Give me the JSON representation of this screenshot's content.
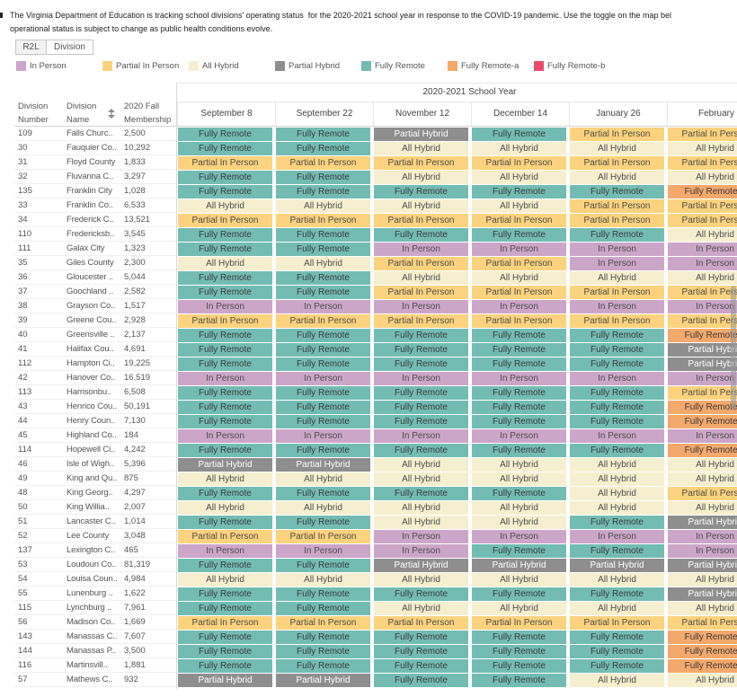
{
  "intro": {
    "line1": "The Virginia Department of Education is tracking school divisions' operating status  for the 2020-2021 school year in response to the COVID-19 pandemic. Use the toggle on the map bel",
    "line2": "operational status is subject to change as public health conditions evolve."
  },
  "toggle": {
    "options": [
      "R2L",
      "Division"
    ]
  },
  "legend": [
    {
      "label": "In Person",
      "color": "#cca6c9",
      "text_color": "#4d4d4d"
    },
    {
      "label": "Partial In Person",
      "color": "#fbd27d",
      "text_color": "#4d4d4d"
    },
    {
      "label": "All Hybrid",
      "color": "#f6efcf",
      "text_color": "#4d4d4d"
    },
    {
      "label": "Partial Hybrid",
      "color": "#8e8e8e",
      "text_color": "#ffffff"
    },
    {
      "label": "Fully Remote",
      "color": "#73bcb4",
      "text_color": "#3a3a3a"
    },
    {
      "label": "Fully Remote-a",
      "color": "#f4a96c",
      "text_color": "#3a3a3a"
    },
    {
      "label": "Fully Remote-b",
      "color": "#e94b6d",
      "text_color": "#ffffff"
    }
  ],
  "chart_data": {
    "type": "table",
    "column_group_label": "2020-2021 School Year",
    "row_header_labels": {
      "number": [
        "Division",
        "Number"
      ],
      "name": [
        "Division",
        "Name"
      ],
      "membership": [
        "2020 Fall",
        "Membership"
      ]
    },
    "columns": [
      "September 8",
      "September 22",
      "November 12",
      "December 14",
      "January 26",
      "February"
    ],
    "rows": [
      {
        "number": "109",
        "name": "Falls Churc..",
        "membership": "2,500",
        "status": [
          "Fully Remote",
          "Fully Remote",
          "Partial Hybrid",
          "Fully Remote",
          "Partial In Person",
          "Partial In Person"
        ]
      },
      {
        "number": "30",
        "name": "Fauquier Co..",
        "membership": "10,292",
        "status": [
          "Fully Remote",
          "Fully Remote",
          "All Hybrid",
          "All Hybrid",
          "All Hybrid",
          "All Hybrid"
        ]
      },
      {
        "number": "31",
        "name": "Floyd County",
        "membership": "1,833",
        "status": [
          "Partial In Person",
          "Partial In Person",
          "Partial In Person",
          "Partial In Person",
          "Partial In Person",
          "Partial In Person"
        ]
      },
      {
        "number": "32",
        "name": "Fluvanna C..",
        "membership": "3,297",
        "status": [
          "Fully Remote",
          "Fully Remote",
          "All Hybrid",
          "All Hybrid",
          "All Hybrid",
          "All Hybrid"
        ]
      },
      {
        "number": "135",
        "name": "Franklin City",
        "membership": "1,028",
        "status": [
          "Fully Remote",
          "Fully Remote",
          "Fully Remote",
          "Fully Remote",
          "Fully Remote",
          "Fully Remote-a"
        ]
      },
      {
        "number": "33",
        "name": "Franklin Co..",
        "membership": "6,533",
        "status": [
          "All Hybrid",
          "All Hybrid",
          "All Hybrid",
          "All Hybrid",
          "Partial In Person",
          "Partial In Person"
        ]
      },
      {
        "number": "34",
        "name": "Frederick C..",
        "membership": "13,521",
        "status": [
          "Partial In Person",
          "Partial In Person",
          "Partial In Person",
          "Partial In Person",
          "Partial In Person",
          "Partial In Person"
        ]
      },
      {
        "number": "110",
        "name": "Fredericksb..",
        "membership": "3,545",
        "status": [
          "Fully Remote",
          "Fully Remote",
          "Fully Remote",
          "Fully Remote",
          "Fully Remote",
          "All Hybrid"
        ]
      },
      {
        "number": "111",
        "name": "Galax City",
        "membership": "1,323",
        "status": [
          "Fully Remote",
          "Fully Remote",
          "In Person",
          "In Person",
          "In Person",
          "In Person"
        ]
      },
      {
        "number": "35",
        "name": "Giles County",
        "membership": "2,300",
        "status": [
          "All Hybrid",
          "All Hybrid",
          "Partial In Person",
          "Partial In Person",
          "In Person",
          "In Person"
        ]
      },
      {
        "number": "36",
        "name": "Gloucester ..",
        "membership": "5,044",
        "status": [
          "Fully Remote",
          "Fully Remote",
          "All Hybrid",
          "All Hybrid",
          "All Hybrid",
          "All Hybrid"
        ]
      },
      {
        "number": "37",
        "name": "Goochland ..",
        "membership": "2,582",
        "status": [
          "Fully Remote",
          "Fully Remote",
          "Partial In Person",
          "Partial In Person",
          "Partial In Person",
          "Partial In Person"
        ]
      },
      {
        "number": "38",
        "name": "Grayson Co..",
        "membership": "1,517",
        "status": [
          "In Person",
          "In Person",
          "In Person",
          "In Person",
          "In Person",
          "In Person"
        ]
      },
      {
        "number": "39",
        "name": "Greene Cou..",
        "membership": "2,928",
        "status": [
          "Partial In Person",
          "Partial In Person",
          "Partial In Person",
          "Partial In Person",
          "Partial In Person",
          "Partial In Person"
        ]
      },
      {
        "number": "40",
        "name": "Greensville ..",
        "membership": "2,137",
        "status": [
          "Fully Remote",
          "Fully Remote",
          "Fully Remote",
          "Fully Remote",
          "Fully Remote",
          "Fully Remote-a"
        ]
      },
      {
        "number": "41",
        "name": "Halifax Cou..",
        "membership": "4,691",
        "status": [
          "Fully Remote",
          "Fully Remote",
          "Fully Remote",
          "Fully Remote",
          "Fully Remote",
          "Partial Hybrid"
        ]
      },
      {
        "number": "112",
        "name": "Hampton Ci..",
        "membership": "19,225",
        "status": [
          "Fully Remote",
          "Fully Remote",
          "Fully Remote",
          "Fully Remote",
          "Fully Remote",
          "Partial Hybrid"
        ]
      },
      {
        "number": "42",
        "name": "Hanover Co..",
        "membership": "16,519",
        "status": [
          "In Person",
          "In Person",
          "In Person",
          "In Person",
          "In Person",
          "In Person"
        ]
      },
      {
        "number": "113",
        "name": "Harrisonbu..",
        "membership": "6,508",
        "status": [
          "Fully Remote",
          "Fully Remote",
          "Fully Remote",
          "Fully Remote",
          "Fully Remote",
          "Partial In Person"
        ]
      },
      {
        "number": "43",
        "name": "Henrico Cou..",
        "membership": "50,191",
        "status": [
          "Fully Remote",
          "Fully Remote",
          "Fully Remote",
          "Fully Remote",
          "Fully Remote",
          "Fully Remote-a"
        ]
      },
      {
        "number": "44",
        "name": "Henry Coun..",
        "membership": "7,130",
        "status": [
          "Fully Remote",
          "Fully Remote",
          "Fully Remote",
          "Fully Remote",
          "Fully Remote",
          "Fully Remote-a"
        ]
      },
      {
        "number": "45",
        "name": "Highland Co..",
        "membership": "184",
        "status": [
          "In Person",
          "In Person",
          "In Person",
          "In Person",
          "In Person",
          "In Person"
        ]
      },
      {
        "number": "114",
        "name": "Hopewell Ci..",
        "membership": "4,242",
        "status": [
          "Fully Remote",
          "Fully Remote",
          "Fully Remote",
          "Fully Remote",
          "Fully Remote",
          "Fully Remote-a"
        ]
      },
      {
        "number": "46",
        "name": "Isle of Wigh..",
        "membership": "5,396",
        "status": [
          "Partial Hybrid",
          "Partial Hybrid",
          "All Hybrid",
          "All Hybrid",
          "All Hybrid",
          "All Hybrid"
        ]
      },
      {
        "number": "49",
        "name": "King and Qu..",
        "membership": "875",
        "status": [
          "All Hybrid",
          "All Hybrid",
          "All Hybrid",
          "All Hybrid",
          "All Hybrid",
          "All Hybrid"
        ]
      },
      {
        "number": "48",
        "name": "King Georg..",
        "membership": "4,297",
        "status": [
          "Fully Remote",
          "Fully Remote",
          "Fully Remote",
          "Fully Remote",
          "All Hybrid",
          "Partial In Person"
        ]
      },
      {
        "number": "50",
        "name": "King Willia..",
        "membership": "2,007",
        "status": [
          "All Hybrid",
          "All Hybrid",
          "All Hybrid",
          "All Hybrid",
          "All Hybrid",
          "All Hybrid"
        ]
      },
      {
        "number": "51",
        "name": "Lancaster C..",
        "membership": "1,014",
        "status": [
          "Fully Remote",
          "Fully Remote",
          "All Hybrid",
          "All Hybrid",
          "Fully Remote",
          "Partial Hybrid"
        ]
      },
      {
        "number": "52",
        "name": "Lee County",
        "membership": "3,048",
        "status": [
          "Partial In Person",
          "Partial In Person",
          "In Person",
          "In Person",
          "In Person",
          "In Person"
        ]
      },
      {
        "number": "137",
        "name": "Lexington C..",
        "membership": "465",
        "status": [
          "In Person",
          "In Person",
          "In Person",
          "Fully Remote",
          "Fully Remote",
          "In Person"
        ]
      },
      {
        "number": "53",
        "name": "Loudoun Co..",
        "membership": "81,319",
        "status": [
          "Fully Remote",
          "Fully Remote",
          "Partial Hybrid",
          "Partial Hybrid",
          "Partial Hybrid",
          "Partial Hybrid"
        ]
      },
      {
        "number": "54",
        "name": "Louisa Coun..",
        "membership": "4,984",
        "status": [
          "All Hybrid",
          "All Hybrid",
          "All Hybrid",
          "All Hybrid",
          "All Hybrid",
          "All Hybrid"
        ]
      },
      {
        "number": "55",
        "name": "Lunenburg ..",
        "membership": "1,622",
        "status": [
          "Fully Remote",
          "Fully Remote",
          "Fully Remote",
          "Fully Remote",
          "Fully Remote",
          "Partial Hybrid"
        ]
      },
      {
        "number": "115",
        "name": "Lynchburg ..",
        "membership": "7,961",
        "status": [
          "Fully Remote",
          "Fully Remote",
          "All Hybrid",
          "All Hybrid",
          "All Hybrid",
          "All Hybrid"
        ]
      },
      {
        "number": "56",
        "name": "Madison Co..",
        "membership": "1,669",
        "status": [
          "Partial In Person",
          "Partial In Person",
          "Partial In Person",
          "Partial In Person",
          "Partial In Person",
          "Partial In Person"
        ]
      },
      {
        "number": "143",
        "name": "Manassas C..",
        "membership": "7,607",
        "status": [
          "Fully Remote",
          "Fully Remote",
          "Fully Remote",
          "Fully Remote",
          "Fully Remote",
          "Fully Remote-a"
        ]
      },
      {
        "number": "144",
        "name": "Manassas P..",
        "membership": "3,500",
        "status": [
          "Fully Remote",
          "Fully Remote",
          "Fully Remote",
          "Fully Remote",
          "Fully Remote",
          "Fully Remote-a"
        ]
      },
      {
        "number": "116",
        "name": "Martinsvill..",
        "membership": "1,881",
        "status": [
          "Fully Remote",
          "Fully Remote",
          "Fully Remote",
          "Fully Remote",
          "Fully Remote",
          "Fully Remote-a"
        ]
      },
      {
        "number": "57",
        "name": "Mathews C..",
        "membership": "932",
        "status": [
          "Partial Hybrid",
          "Partial Hybrid",
          "Fully Remote",
          "Fully Remote",
          "All Hybrid",
          "All Hybrid"
        ]
      }
    ]
  }
}
